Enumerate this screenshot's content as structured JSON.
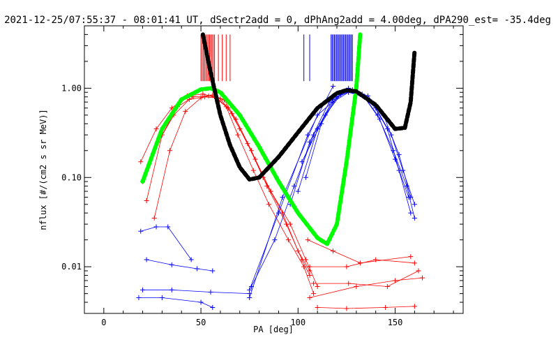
{
  "chart_data": {
    "type": "scatter",
    "title": "2021-12-25/07:55:37 - 08:01:41 UT, dSectr2add = 0, dPhAng2add = 4.00deg, dPA290_est= -35.4deg",
    "xlabel": "PA [deg]",
    "ylabel": "nflux [#/(cm2 s sr MeV)]",
    "xlim": [
      -10,
      185
    ],
    "ylim": [
      0.003,
      5.0
    ],
    "yscale": "log",
    "grid": false,
    "x_ticks": [
      0,
      50,
      100,
      150
    ],
    "x_tick_labels": [
      "0",
      "50",
      "100",
      "150"
    ],
    "y_ticks": [
      0.01,
      0.1,
      1.0
    ],
    "y_tick_labels": [
      "0.01",
      "0.10",
      "1.00"
    ],
    "colors": {
      "red": "#ff0000",
      "blue": "#0000ff",
      "green": "#00ff00",
      "black": "#000000"
    },
    "series": [
      {
        "color": "red",
        "style": "solid",
        "x": [
          20,
          28,
          36,
          44,
          52,
          58,
          64,
          70,
          78,
          86,
          96,
          104,
          110
        ],
        "y": [
          0.09,
          0.25,
          0.5,
          0.75,
          0.8,
          0.78,
          0.6,
          0.35,
          0.16,
          0.07,
          0.03,
          0.012,
          0.006
        ]
      },
      {
        "color": "red",
        "style": "solid",
        "x": [
          19,
          27,
          35,
          43,
          51,
          57,
          63,
          69,
          77,
          85,
          95,
          103,
          108
        ],
        "y": [
          0.15,
          0.35,
          0.6,
          0.82,
          0.86,
          0.8,
          0.62,
          0.3,
          0.12,
          0.05,
          0.02,
          0.01,
          0.005
        ]
      },
      {
        "color": "red",
        "style": "solid",
        "x": [
          26,
          34,
          42,
          50,
          56,
          62,
          68,
          76,
          84,
          94,
          102,
          106
        ],
        "y": [
          0.035,
          0.2,
          0.55,
          0.78,
          0.84,
          0.74,
          0.45,
          0.2,
          0.08,
          0.03,
          0.012,
          0.008
        ]
      },
      {
        "color": "red",
        "style": "solid",
        "x": [
          22,
          30,
          38,
          46,
          54,
          60,
          66,
          74,
          82,
          92,
          100,
          106
        ],
        "y": [
          0.055,
          0.3,
          0.62,
          0.8,
          0.82,
          0.76,
          0.52,
          0.24,
          0.1,
          0.04,
          0.015,
          0.009
        ]
      },
      {
        "color": "red",
        "style": "solid",
        "x": [
          106,
          125,
          140,
          160
        ],
        "y": [
          0.01,
          0.01,
          0.012,
          0.011
        ]
      },
      {
        "color": "red",
        "style": "solid",
        "x": [
          106,
          130,
          150,
          164
        ],
        "y": [
          0.0045,
          0.006,
          0.007,
          0.0075
        ]
      },
      {
        "color": "red",
        "style": "solid",
        "x": [
          110,
          125,
          145,
          160
        ],
        "y": [
          0.0035,
          0.0034,
          0.0035,
          0.0036
        ]
      },
      {
        "color": "red",
        "style": "solid",
        "x": [
          105,
          118,
          132,
          158
        ],
        "y": [
          0.02,
          0.015,
          0.011,
          0.013
        ]
      },
      {
        "color": "red",
        "style": "solid",
        "x": [
          108,
          126,
          146,
          162
        ],
        "y": [
          0.0065,
          0.0065,
          0.006,
          0.009
        ]
      },
      {
        "color": "blue",
        "style": "solid",
        "x": [
          104,
          112,
          120,
          126,
          132,
          140,
          148,
          154,
          160
        ],
        "y": [
          0.1,
          0.4,
          0.8,
          0.9,
          0.85,
          0.6,
          0.3,
          0.12,
          0.05
        ]
      },
      {
        "color": "blue",
        "style": "solid",
        "x": [
          96,
          106,
          116,
          124,
          130,
          138,
          146,
          152,
          158
        ],
        "y": [
          0.05,
          0.25,
          0.7,
          0.92,
          0.88,
          0.7,
          0.35,
          0.12,
          0.04
        ]
      },
      {
        "color": "blue",
        "style": "solid",
        "x": [
          100,
          110,
          118,
          125,
          133,
          141,
          149,
          156,
          160
        ],
        "y": [
          0.07,
          0.35,
          0.75,
          0.95,
          0.86,
          0.5,
          0.2,
          0.08,
          0.035
        ]
      },
      {
        "color": "blue",
        "style": "solid",
        "x": [
          76,
          88,
          98,
          108,
          118,
          126,
          134,
          142,
          150,
          157
        ],
        "y": [
          0.006,
          0.02,
          0.08,
          0.3,
          0.7,
          0.9,
          0.8,
          0.45,
          0.16,
          0.06
        ]
      },
      {
        "color": "blue",
        "style": "solid",
        "x": [
          102,
          114,
          122,
          128,
          136,
          144,
          152,
          158
        ],
        "y": [
          0.15,
          0.5,
          0.85,
          0.96,
          0.82,
          0.5,
          0.18,
          0.06
        ]
      },
      {
        "color": "blue",
        "style": "solid",
        "x": [
          75,
          90,
          105,
          118
        ],
        "y": [
          0.0055,
          0.04,
          0.3,
          1.05
        ]
      },
      {
        "color": "blue",
        "style": "solid",
        "x": [
          75,
          92,
          110,
          126
        ],
        "y": [
          0.0045,
          0.06,
          0.5,
          1.0
        ]
      },
      {
        "color": "blue",
        "style": "solid",
        "x": [
          20,
          35,
          55,
          75
        ],
        "y": [
          0.0055,
          0.0055,
          0.0052,
          0.005
        ]
      },
      {
        "color": "blue",
        "style": "solid",
        "x": [
          18,
          30,
          50,
          56
        ],
        "y": [
          0.0045,
          0.0045,
          0.004,
          0.0035
        ]
      },
      {
        "color": "blue",
        "style": "solid",
        "x": [
          19,
          27,
          33,
          45
        ],
        "y": [
          0.025,
          0.028,
          0.028,
          0.012
        ]
      },
      {
        "color": "blue",
        "style": "solid",
        "x": [
          22,
          35,
          48,
          56
        ],
        "y": [
          0.012,
          0.0105,
          0.0095,
          0.009
        ]
      },
      {
        "color": "green",
        "style": "dashed",
        "x": [
          20,
          30,
          40,
          50,
          55,
          60,
          70,
          80,
          90,
          100,
          110,
          115,
          120,
          125,
          130,
          132
        ],
        "y": [
          0.09,
          0.35,
          0.75,
          0.97,
          1.0,
          0.9,
          0.5,
          0.22,
          0.09,
          0.04,
          0.021,
          0.018,
          0.03,
          0.15,
          1.0,
          4.0
        ]
      },
      {
        "color": "black",
        "style": "dashed",
        "x": [
          51,
          55,
          60,
          65,
          70,
          75,
          80,
          90,
          100,
          110,
          120,
          125,
          130,
          140,
          150,
          155,
          158,
          160
        ],
        "y": [
          4.0,
          1.5,
          0.5,
          0.23,
          0.13,
          0.095,
          0.1,
          0.17,
          0.32,
          0.6,
          0.88,
          0.95,
          0.92,
          0.65,
          0.35,
          0.36,
          0.7,
          2.6
        ]
      }
    ],
    "vertical_markers": [
      {
        "color": "red",
        "x_range": [
          50,
          57
        ],
        "count": 12,
        "y_range": [
          1.2,
          4.0
        ]
      },
      {
        "color": "red",
        "x": [
          59,
          61,
          63,
          65
        ],
        "y_range": [
          1.2,
          4.0
        ]
      },
      {
        "color": "blue",
        "x_range": [
          117,
          128
        ],
        "count": 20,
        "y_range": [
          1.2,
          4.0
        ]
      },
      {
        "color": "blue",
        "x": [
          103,
          106
        ],
        "y_range": [
          1.2,
          4.0
        ]
      }
    ]
  }
}
